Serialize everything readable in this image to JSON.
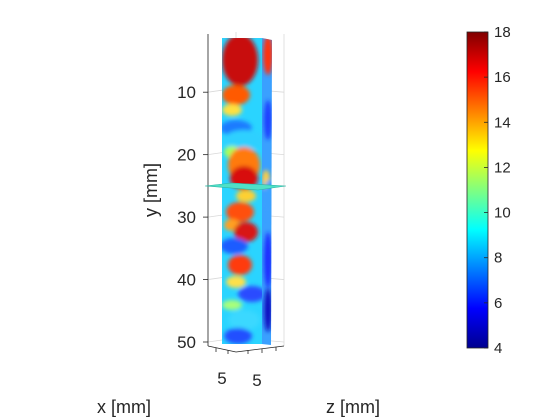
{
  "chart_data": {
    "type": "heatmap",
    "title": "",
    "xlabel": "x [mm]",
    "ylabel": "y [mm]",
    "zlabel": "z [mm]",
    "y_ticks": [
      10,
      20,
      30,
      40,
      50
    ],
    "x_ticks": [
      5
    ],
    "z_ticks": [
      5
    ],
    "ylim": [
      1,
      50
    ],
    "grid": true,
    "colormap": "jet",
    "colorbar": {
      "placement": "right",
      "limits": [
        4,
        18
      ],
      "ticks": [
        4,
        6,
        8,
        10,
        12,
        14,
        16,
        18
      ]
    }
  }
}
